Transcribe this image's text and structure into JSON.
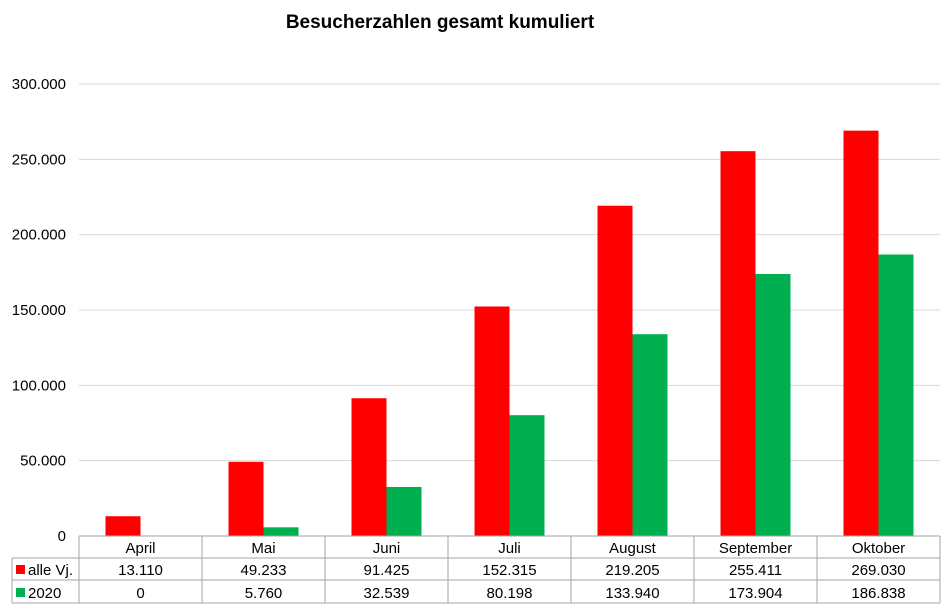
{
  "chart_data": {
    "type": "bar",
    "title": "Besucherzahlen gesamt kumuliert",
    "categories": [
      "April",
      "Mai",
      "Juni",
      "Juli",
      "August",
      "September",
      "Oktober"
    ],
    "series": [
      {
        "name": "alle Vj.",
        "color": "#FF0000",
        "values": [
          13110,
          49233,
          91425,
          152315,
          219205,
          255411,
          269030
        ],
        "labels": [
          "13.110",
          "49.233",
          "91.425",
          "152.315",
          "219.205",
          "255.411",
          "269.030"
        ]
      },
      {
        "name": "2020",
        "color": "#00B050",
        "values": [
          0,
          5760,
          32539,
          80198,
          133940,
          173904,
          186838
        ],
        "labels": [
          "0",
          "5.760",
          "32.539",
          "80.198",
          "133.940",
          "173.904",
          "186.838"
        ]
      }
    ],
    "yticks": [
      0,
      50000,
      100000,
      150000,
      200000,
      250000,
      300000
    ],
    "ytick_labels": [
      "0",
      "50.000",
      "100.000",
      "150.000",
      "200.000",
      "250.000",
      "300.000"
    ],
    "ylim": [
      0,
      300000
    ],
    "grid": true,
    "legend": "data-table"
  }
}
